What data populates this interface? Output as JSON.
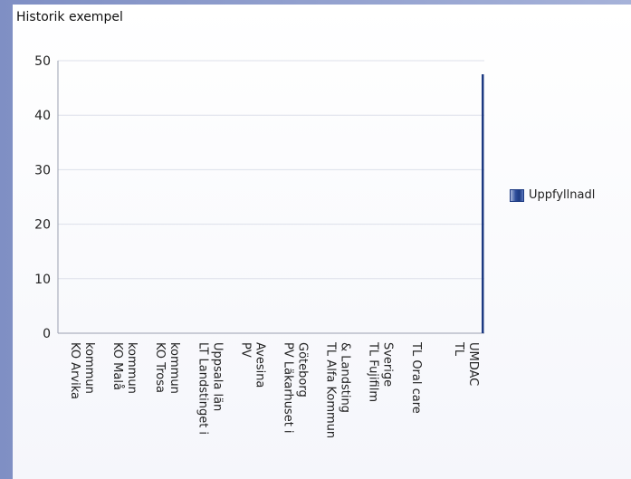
{
  "title": "Historik exempel",
  "chart_data": {
    "type": "bar",
    "title": "Historik exempel",
    "categories": [
      [
        "KO Arvika",
        "kommun"
      ],
      [
        "KO Malå",
        "kommun"
      ],
      [
        "KO Trosa",
        "kommun"
      ],
      [
        "LT Landstinget i",
        "Uppsala län"
      ],
      [
        "PV",
        "Avesina"
      ],
      [
        "PV Läkarhuset i",
        "Göteborg"
      ],
      [
        "TL Alfa Kommun",
        "& Landsting"
      ],
      [
        "TL Fujifilm",
        "Sverige"
      ],
      [
        "TL Oral care"
      ],
      [
        "TL",
        "UMDAC"
      ]
    ],
    "series": [
      {
        "name": "Uppfyllnadl",
        "values": [
          0,
          0,
          0,
          0,
          0,
          0,
          0,
          0,
          0,
          47.5
        ]
      }
    ],
    "ylim": [
      0,
      50
    ],
    "yticks": [
      0,
      10,
      20,
      30,
      40,
      50
    ],
    "grid": true,
    "legend_position": "right",
    "series_color": "#1d3a82"
  }
}
